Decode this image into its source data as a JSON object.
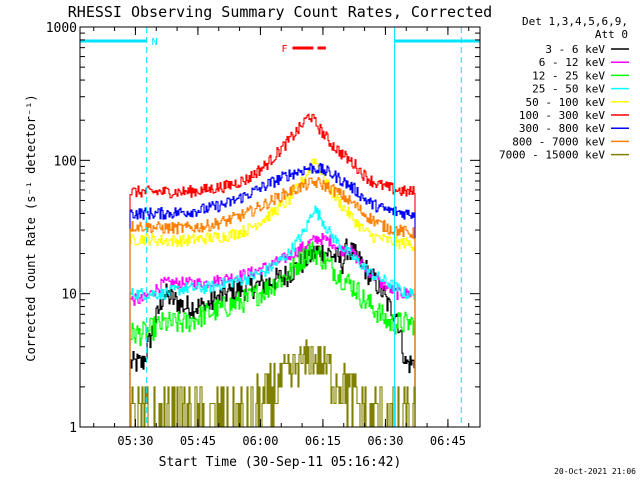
{
  "chart_data": {
    "type": "line",
    "title": "RHESSI Observing Summary Count Rates, Corrected",
    "xlabel": "Start Time (30-Sep-11 05:16:42)",
    "ylabel": "Corrected Count Rate (s⁻¹ detector⁻¹)",
    "yscale": "log",
    "ylim": [
      1,
      1000
    ],
    "xlim_minutes_after_start": [
      0,
      96
    ],
    "x_ticks": [
      {
        "label": "05:30",
        "minute": 13.3
      },
      {
        "label": "05:45",
        "minute": 28.3
      },
      {
        "label": "06:00",
        "minute": 43.3
      },
      {
        "label": "06:15",
        "minute": 58.3
      },
      {
        "label": "06:30",
        "minute": 73.3
      },
      {
        "label": "06:45",
        "minute": 88.3
      }
    ],
    "y_ticks": [
      {
        "label": "1",
        "value": 1
      },
      {
        "label": "10",
        "value": 10
      },
      {
        "label": "100",
        "value": 100
      },
      {
        "label": "1000",
        "value": 1000
      }
    ],
    "legend": {
      "header": [
        "Det 1,3,4,5,6,9,",
        "Att 0"
      ],
      "placement": "right"
    },
    "annotations": {
      "night_label": "N",
      "flare_label": "F",
      "night_color": "#00e5ff",
      "flare_color": "#ff0000",
      "night_bars": [
        [
          0,
          16
        ],
        [
          75.5,
          96
        ]
      ],
      "night_solid_lines": [
        0,
        75.5
      ],
      "night_dashed_lines": [
        16,
        91.5
      ],
      "flare_bars": [
        [
          51,
          56
        ],
        [
          57,
          59
        ]
      ]
    },
    "data_start_minute": 12,
    "data_end_minute": 80.5,
    "series": [
      {
        "name": "3 - 6 keV",
        "color": "#000000",
        "x": [
          12,
          15,
          20,
          25,
          30,
          35,
          40,
          45,
          50,
          55,
          57,
          60,
          62,
          63,
          64,
          66,
          68,
          70,
          72,
          74,
          76,
          78,
          80.5
        ],
        "y": [
          3,
          3,
          10,
          8,
          8,
          10,
          11,
          12,
          14,
          19,
          21,
          20,
          18,
          17,
          22,
          19,
          16,
          13,
          11,
          8,
          7,
          3,
          3
        ]
      },
      {
        "name": "6 - 12 keV",
        "color": "#ff00ff",
        "x": [
          12,
          15,
          20,
          25,
          30,
          35,
          40,
          45,
          50,
          55,
          57,
          60,
          62,
          63,
          64,
          66,
          68,
          70,
          72,
          74,
          76,
          78,
          80.5
        ],
        "y": [
          9,
          9,
          12,
          12,
          12,
          13,
          14,
          16,
          19,
          24,
          26,
          25,
          22,
          21,
          23,
          19,
          16,
          14,
          12,
          11,
          10,
          10,
          10
        ]
      },
      {
        "name": "12 - 25 keV",
        "color": "#00ff00",
        "x": [
          12,
          15,
          20,
          25,
          30,
          35,
          40,
          45,
          50,
          53,
          55,
          57,
          60,
          63,
          66,
          68,
          70,
          72,
          74,
          76,
          78,
          80.5
        ],
        "y": [
          5,
          5,
          6,
          6,
          7,
          8,
          9,
          11,
          14,
          18,
          21,
          20,
          16,
          13,
          11,
          9,
          8,
          7,
          6,
          6,
          6,
          6
        ]
      },
      {
        "name": "25 - 50 keV",
        "color": "#00ffff",
        "x": [
          12,
          15,
          20,
          25,
          30,
          35,
          40,
          45,
          50,
          54,
          56,
          58,
          60,
          63,
          66,
          68,
          70,
          72,
          74,
          76,
          78,
          80.5
        ],
        "y": [
          10,
          10,
          10,
          11,
          11,
          12,
          13,
          15,
          20,
          30,
          44,
          36,
          28,
          22,
          18,
          16,
          14,
          13,
          12,
          11,
          10,
          10
        ]
      },
      {
        "name": "50 - 100 keV",
        "color": "#ffff00",
        "x": [
          12,
          15,
          20,
          25,
          30,
          35,
          40,
          45,
          50,
          54,
          56,
          58,
          60,
          63,
          66,
          68,
          70,
          72,
          74,
          76,
          78,
          80.5
        ],
        "y": [
          25,
          26,
          25,
          25,
          26,
          27,
          30,
          38,
          50,
          75,
          105,
          80,
          60,
          45,
          35,
          30,
          27,
          26,
          25,
          24,
          24,
          23
        ]
      },
      {
        "name": "100 - 300 keV",
        "color": "#ff0000",
        "x": [
          12,
          15,
          20,
          25,
          30,
          35,
          40,
          45,
          50,
          53,
          55,
          57,
          60,
          63,
          66,
          68,
          70,
          72,
          74,
          76,
          78,
          80.5
        ],
        "y": [
          58,
          58,
          58,
          58,
          60,
          64,
          72,
          95,
          140,
          180,
          220,
          180,
          135,
          110,
          92,
          78,
          70,
          65,
          62,
          60,
          58,
          58
        ]
      },
      {
        "name": "300 - 800 keV",
        "color": "#0000ff",
        "x": [
          12,
          15,
          20,
          25,
          30,
          35,
          40,
          45,
          50,
          55,
          57,
          60,
          63,
          66,
          68,
          70,
          72,
          74,
          76,
          78,
          80.5
        ],
        "y": [
          40,
          40,
          40,
          41,
          43,
          47,
          55,
          66,
          78,
          88,
          87,
          80,
          70,
          60,
          52,
          47,
          44,
          42,
          41,
          40,
          40
        ]
      },
      {
        "name": "800 - 7000 keV",
        "color": "#ff8000",
        "x": [
          12,
          15,
          20,
          25,
          30,
          35,
          40,
          45,
          50,
          55,
          57,
          60,
          63,
          66,
          68,
          70,
          72,
          74,
          76,
          78,
          80.5
        ],
        "y": [
          32,
          32,
          31,
          31,
          32,
          35,
          40,
          48,
          58,
          67,
          68,
          62,
          54,
          46,
          40,
          36,
          33,
          31,
          30,
          29,
          28
        ]
      },
      {
        "name": "7000 - 15000 keV",
        "color": "#808000",
        "x": [
          12,
          40,
          44,
          47,
          50,
          53,
          55,
          58,
          61,
          64,
          66,
          69,
          80.5
        ],
        "y": [
          1,
          1,
          1.5,
          2,
          2.5,
          3,
          3.5,
          3,
          2.5,
          2,
          1.5,
          1,
          1
        ]
      }
    ]
  },
  "footer": {
    "timestamp": "20-Oct-2021 21:06"
  }
}
